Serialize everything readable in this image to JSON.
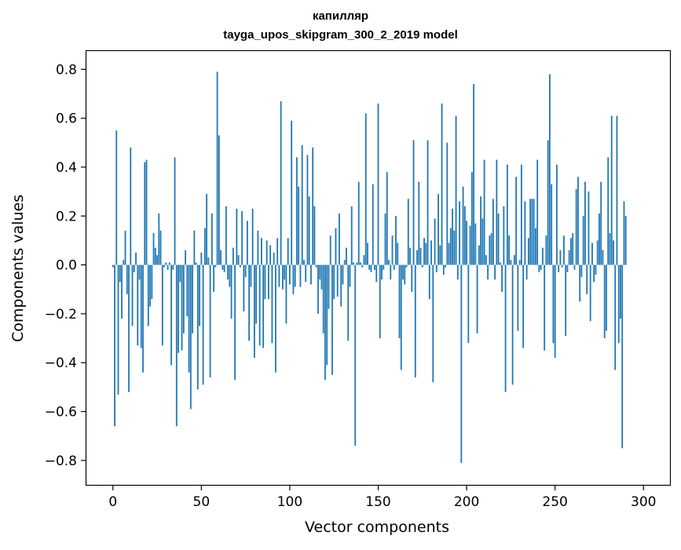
{
  "chart_data": {
    "type": "bar",
    "title_line1": "капилляр",
    "title_line2": "tayga_upos_skipgram_300_2_2019 model",
    "xlabel": "Vector components",
    "ylabel": "Components values",
    "xlim": [
      -15,
      315
    ],
    "ylim": [
      -0.9,
      0.875
    ],
    "xticks": [
      0,
      50,
      100,
      150,
      200,
      250,
      300
    ],
    "yticks": [
      0.8,
      0.6,
      0.4,
      0.2,
      0.0,
      -0.2,
      -0.4,
      -0.6,
      -0.8
    ],
    "ytick_labels": [
      "0.8",
      "0.6",
      "0.4",
      "0.2",
      "0.0",
      "−0.2",
      "−0.4",
      "−0.6",
      "−0.8"
    ],
    "bar_color": "#1f77b4",
    "grid": false,
    "values": [
      -0.01,
      -0.66,
      0.55,
      -0.53,
      -0.07,
      -0.22,
      0.02,
      0.14,
      -0.12,
      -0.52,
      0.48,
      -0.25,
      -0.03,
      0.05,
      -0.33,
      -0.06,
      -0.34,
      -0.44,
      0.42,
      0.43,
      -0.25,
      -0.17,
      -0.14,
      0.13,
      0.07,
      0.04,
      0.21,
      0.14,
      -0.33,
      -0.01,
      0.01,
      -0.02,
      0.01,
      -0.41,
      -0.02,
      0.44,
      -0.66,
      -0.36,
      -0.07,
      -0.35,
      -0.28,
      0.06,
      -0.21,
      -0.44,
      -0.59,
      -0.28,
      0.14,
      0.01,
      -0.51,
      -0.25,
      0.05,
      -0.49,
      0.15,
      0.29,
      0.03,
      -0.46,
      0.21,
      -0.11,
      -0.01,
      0.79,
      0.53,
      0.06,
      -0.02,
      -0.03,
      0.24,
      -0.06,
      -0.09,
      -0.22,
      0.07,
      -0.47,
      0.23,
      0.04,
      -0.01,
      0.22,
      -0.19,
      -0.05,
      0.18,
      -0.31,
      -0.09,
      0.23,
      -0.38,
      -0.24,
      0.14,
      -0.33,
      0.11,
      -0.34,
      -0.14,
      0.1,
      -0.14,
      0.08,
      -0.32,
      0.05,
      -0.44,
      0.11,
      -0.09,
      0.67,
      -0.1,
      -0.06,
      -0.24,
      0.11,
      -0.08,
      0.59,
      -0.12,
      -0.09,
      0.44,
      0.32,
      -0.09,
      0.49,
      0.02,
      -0.07,
      0.45,
      0.28,
      -0.08,
      0.48,
      0.24,
      -0.01,
      -0.2,
      -0.06,
      -0.1,
      -0.28,
      -0.47,
      -0.41,
      -0.18,
      0.12,
      -0.45,
      -0.14,
      0.15,
      -0.13,
      0.21,
      -0.17,
      -0.08,
      0.02,
      0.07,
      -0.31,
      -0.09,
      0.24,
      0.01,
      -0.74,
      0.01,
      0.34,
      0.01,
      -0.01,
      0.04,
      0.62,
      0.09,
      -0.02,
      -0.03,
      0.33,
      -0.02,
      -0.07,
      0.66,
      -0.3,
      -0.06,
      -0.02,
      0.21,
      0.38,
      0.02,
      -0.06,
      0.12,
      -0.02,
      0.2,
      0.09,
      -0.3,
      -0.43,
      -0.06,
      -0.08,
      -0.01,
      0.27,
      0.07,
      -0.11,
      0.51,
      -0.46,
      0.06,
      0.34,
      0.07,
      -0.01,
      0.11,
      0.09,
      0.51,
      -0.14,
      0.1,
      -0.48,
      0.19,
      -0.03,
      0.29,
      0.08,
      0.66,
      -0.04,
      -0.01,
      0.5,
      0.09,
      0.15,
      0.23,
      0.14,
      0.61,
      -0.06,
      0.26,
      -0.81,
      0.32,
      0.24,
      0.18,
      -0.32,
      0.16,
      0.38,
      0.74,
      0.17,
      -0.28,
      0.08,
      0.28,
      0.19,
      0.43,
      0.04,
      -0.06,
      0.12,
      0.13,
      0.27,
      -0.06,
      0.43,
      0.21,
      0.01,
      -0.11,
      0.24,
      -0.52,
      0.41,
      0.12,
      0.02,
      -0.49,
      0.04,
      0.36,
      -0.27,
      0.02,
      0.41,
      -0.34,
      0.26,
      -0.06,
      0.11,
      0.27,
      0.27,
      0.27,
      0.15,
      0.43,
      -0.03,
      -0.02,
      0.07,
      -0.35,
      0.12,
      0.51,
      0.78,
      0.33,
      -0.32,
      -0.38,
      0.41,
      -0.03,
      0.06,
      -0.01,
      0.12,
      -0.29,
      -0.03,
      0.06,
      0.11,
      0.13,
      -0.02,
      0.31,
      0.36,
      -0.15,
      -0.05,
      0.2,
      0.34,
      -0.12,
      0.3,
      -0.23,
      0.09,
      -0.07,
      -0.04,
      0.1,
      0.21,
      0.34,
      0.06,
      -0.3,
      -0.27,
      0.44,
      0.13,
      0.61,
      0.1,
      -0.43,
      0.61,
      -0.32,
      -0.22,
      -0.75,
      0.26,
      0.2
    ]
  }
}
